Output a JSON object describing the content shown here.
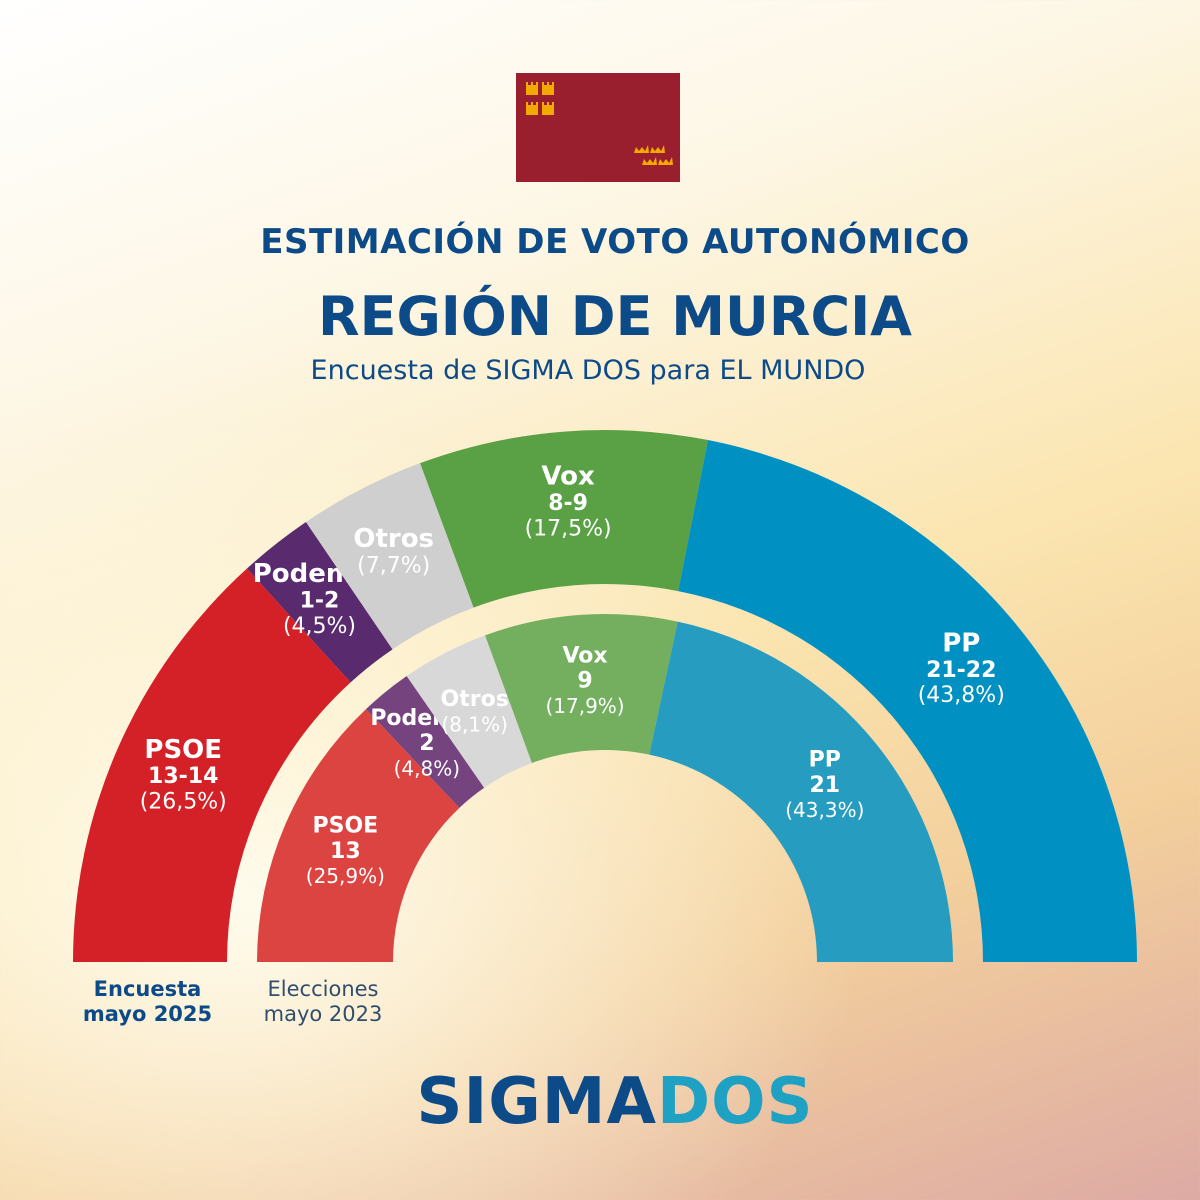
{
  "header": {
    "line1": "ESTIMACIÓN DE VOTO AUTONÓMICO",
    "line2": "REGIÓN DE MURCIA",
    "line3": "Encuesta de SIGMA DOS para EL MUNDO"
  },
  "legend": {
    "outer_line1": "Encuesta",
    "outer_line2": "mayo 2025",
    "inner_line1": "Elecciones",
    "inner_line2": "mayo 2023"
  },
  "brand": {
    "part1": "SIGMA",
    "part2": "DOS"
  },
  "colors": {
    "flag": "#9a1f2e",
    "flag_emblem": "#f2a900",
    "title": "#0c4a88",
    "brand_accent": "#1fa1c4"
  },
  "chart_data": [
    {
      "type": "parliament-arc",
      "legend_label": "Encuesta mayo 2025",
      "series": [
        {
          "name": "PSOE",
          "seats": "13-14",
          "share_text": "(26,5%)",
          "share": 26.5,
          "color": "#d42128"
        },
        {
          "name": "Podemos",
          "seats": "1-2",
          "share_text": "(4,5%)",
          "share": 4.5,
          "color": "#5a2a6e"
        },
        {
          "name": "Otros",
          "seats": "",
          "share_text": "(7,7%)",
          "share": 7.7,
          "color": "#cfcfcf"
        },
        {
          "name": "Vox",
          "seats": "8-9",
          "share_text": "(17,5%)",
          "share": 17.5,
          "color": "#5aa045"
        },
        {
          "name": "PP",
          "seats": "21-22",
          "share_text": "(43,8%)",
          "share": 43.8,
          "color": "#0091c2"
        }
      ]
    },
    {
      "type": "parliament-arc",
      "legend_label": "Elecciones mayo 2023",
      "series": [
        {
          "name": "PSOE",
          "seats": "13",
          "share_text": "(25,9%)",
          "share": 25.9,
          "color": "#dc4442"
        },
        {
          "name": "Podemos",
          "seats": "2",
          "share_text": "(4,8%)",
          "share": 4.8,
          "color": "#75447f"
        },
        {
          "name": "Otros",
          "seats": "",
          "share_text": "(8,1%)",
          "share": 8.1,
          "color": "#d8d8d8"
        },
        {
          "name": "Vox",
          "seats": "9",
          "share_text": "(17,9%)",
          "share": 17.9,
          "color": "#74ae5f"
        },
        {
          "name": "PP",
          "seats": "21",
          "share_text": "(43,3%)",
          "share": 43.3,
          "color": "#269cc0"
        }
      ]
    }
  ]
}
